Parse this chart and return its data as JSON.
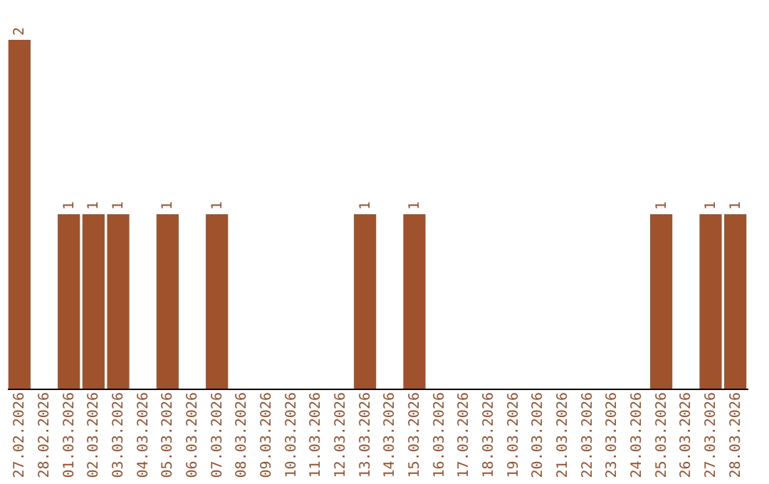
{
  "chart_data": {
    "type": "bar",
    "categories": [
      "27.02.2026",
      "28.02.2026",
      "01.03.2026",
      "02.03.2026",
      "03.03.2026",
      "04.03.2026",
      "05.03.2026",
      "06.03.2026",
      "07.03.2026",
      "08.03.2026",
      "09.03.2026",
      "10.03.2026",
      "11.03.2026",
      "12.03.2026",
      "13.03.2026",
      "14.03.2026",
      "15.03.2026",
      "16.03.2026",
      "17.03.2026",
      "18.03.2026",
      "19.03.2026",
      "20.03.2026",
      "21.03.2026",
      "22.03.2026",
      "23.03.2026",
      "24.03.2026",
      "25.03.2026",
      "26.03.2026",
      "27.03.2026",
      "28.03.2026"
    ],
    "values": [
      2,
      0,
      1,
      1,
      1,
      0,
      1,
      0,
      1,
      0,
      0,
      0,
      0,
      0,
      1,
      0,
      1,
      0,
      0,
      0,
      0,
      0,
      0,
      0,
      0,
      0,
      1,
      0,
      1,
      1
    ],
    "value_labels": [
      "2",
      null,
      "1",
      "1",
      "1",
      null,
      "1",
      null,
      "1",
      null,
      null,
      null,
      null,
      null,
      "1",
      null,
      "1",
      null,
      null,
      null,
      null,
      null,
      null,
      null,
      null,
      null,
      "1",
      null,
      "1",
      "1"
    ],
    "color": "#a0522d",
    "tick_labels": "x",
    "grid": false
  }
}
